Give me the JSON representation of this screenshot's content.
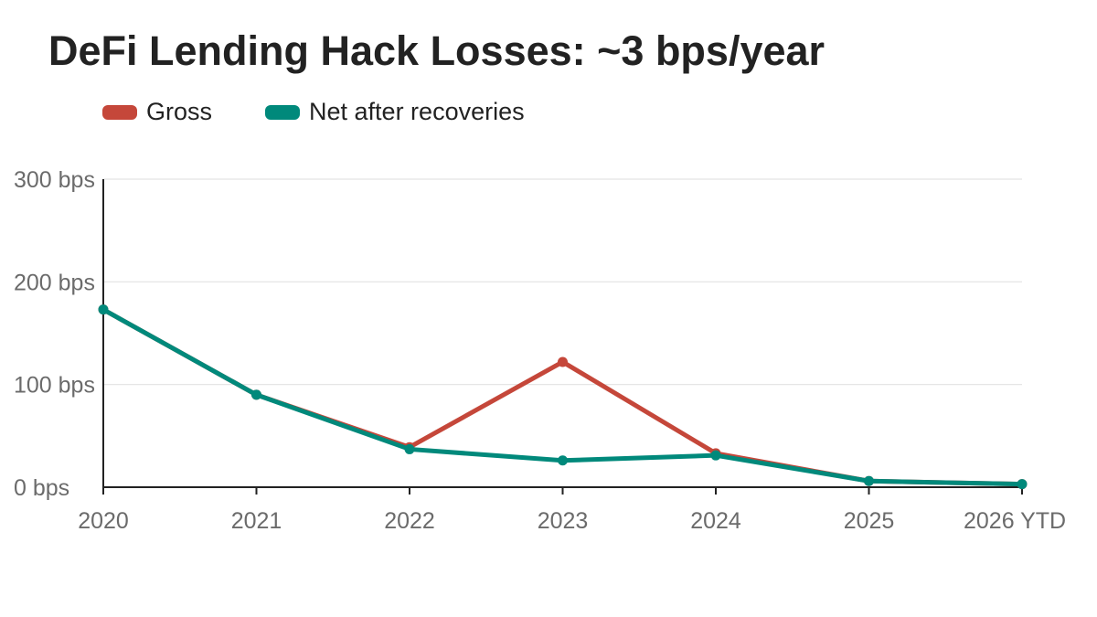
{
  "chart_data": {
    "type": "line",
    "title": "DeFi Lending Hack Losses: ~3 bps/year",
    "xlabel": "",
    "ylabel": "",
    "categories": [
      "2020",
      "2021",
      "2022",
      "2023",
      "2024",
      "2025",
      "2026 YTD"
    ],
    "y_ticks": [
      "0 bps",
      "100 bps",
      "200 bps",
      "300 bps"
    ],
    "ylim": [
      0,
      300
    ],
    "grid": true,
    "legend_position": "top-left",
    "series": [
      {
        "name": "Gross",
        "color": "#c5473a",
        "values": [
          173,
          90,
          39,
          122,
          33,
          6,
          3
        ]
      },
      {
        "name": "Net after recoveries",
        "color": "#00897b",
        "values": [
          173,
          90,
          37,
          26,
          31,
          6,
          3
        ]
      }
    ]
  }
}
